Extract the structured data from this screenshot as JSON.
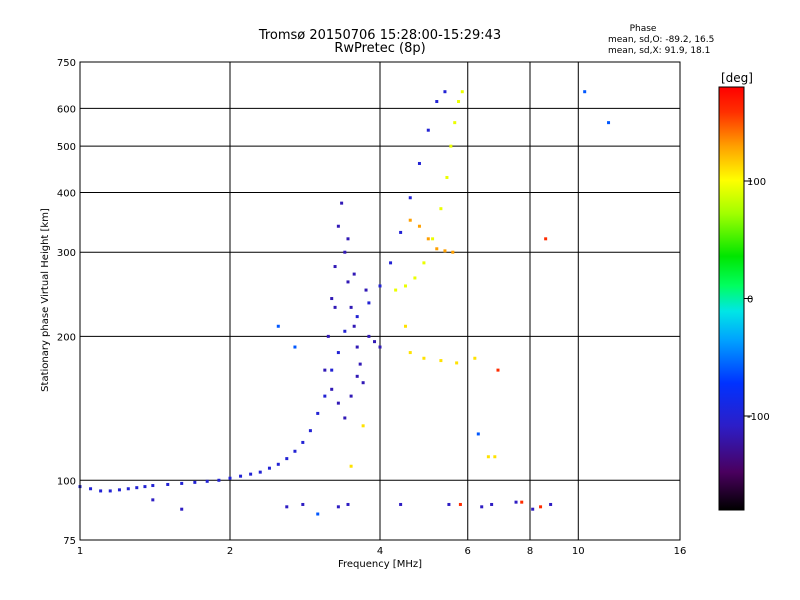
{
  "chart_data": {
    "type": "scatter",
    "title": "Tromsø 20150706 15:28:00-15:29:43",
    "subtitle": "RwPretec (8p)",
    "xlabel": "Frequency [MHz]",
    "ylabel": "Stationary phase Virtual Height [km]",
    "x_scale": "log2",
    "y_scale": "log",
    "xlim": [
      1,
      16
    ],
    "ylim": [
      75,
      750
    ],
    "x_ticks": [
      1,
      2,
      4,
      6,
      8,
      10,
      16
    ],
    "x_tick_labels": [
      "1",
      "2",
      "4",
      "6",
      "8",
      "10",
      "16"
    ],
    "y_ticks": [
      75,
      100,
      200,
      300,
      400,
      500,
      600,
      750
    ],
    "y_tick_labels": [
      "75",
      "100",
      "200",
      "300",
      "400",
      "500",
      "600",
      "750"
    ],
    "grid": true,
    "phase_info": {
      "header": "Phase",
      "line_o": "mean, sd,O: -89.2, 16.5",
      "line_x": "mean, sd,X:  91.9, 18.1"
    },
    "colorbar": {
      "label": "[deg]",
      "range": [
        -180,
        180
      ],
      "ticks": [
        100,
        0,
        -100
      ],
      "tick_labels": [
        "100",
        "0",
        "-100"
      ]
    },
    "series": [
      {
        "color_phase": -100,
        "points": [
          [
            1.0,
            97
          ],
          [
            1.05,
            96
          ],
          [
            1.1,
            95
          ],
          [
            1.15,
            95
          ],
          [
            1.2,
            95.5
          ],
          [
            1.25,
            96
          ],
          [
            1.3,
            96.5
          ],
          [
            1.35,
            97
          ],
          [
            1.4,
            97.5
          ],
          [
            1.5,
            98
          ],
          [
            1.6,
            98.5
          ],
          [
            1.7,
            99
          ],
          [
            1.8,
            99.5
          ],
          [
            1.9,
            100
          ],
          [
            2.0,
            101
          ],
          [
            2.1,
            102
          ],
          [
            2.2,
            103
          ],
          [
            2.3,
            104
          ],
          [
            2.4,
            106
          ],
          [
            2.5,
            108
          ],
          [
            2.6,
            111
          ],
          [
            2.7,
            115
          ],
          [
            2.8,
            120
          ],
          [
            2.9,
            127
          ],
          [
            3.0,
            138
          ],
          [
            3.1,
            150
          ],
          [
            3.2,
            170
          ],
          [
            3.3,
            185
          ],
          [
            3.4,
            205
          ],
          [
            3.6,
            220
          ],
          [
            3.8,
            235
          ],
          [
            4.0,
            255
          ],
          [
            4.2,
            285
          ],
          [
            4.4,
            330
          ],
          [
            4.6,
            390
          ],
          [
            4.8,
            460
          ],
          [
            5.0,
            540
          ],
          [
            5.2,
            620
          ],
          [
            5.4,
            650
          ]
        ]
      },
      {
        "color_phase": -115,
        "points": [
          [
            3.1,
            170
          ],
          [
            3.15,
            200
          ],
          [
            3.2,
            240
          ],
          [
            3.25,
            280
          ],
          [
            3.3,
            340
          ],
          [
            3.35,
            380
          ],
          [
            3.4,
            300
          ],
          [
            3.45,
            260
          ],
          [
            3.5,
            230
          ],
          [
            3.55,
            210
          ],
          [
            3.6,
            190
          ],
          [
            3.65,
            175
          ],
          [
            3.7,
            160
          ],
          [
            3.2,
            155
          ],
          [
            3.3,
            145
          ],
          [
            3.4,
            135
          ],
          [
            3.5,
            150
          ],
          [
            3.6,
            165
          ],
          [
            3.25,
            230
          ],
          [
            3.45,
            320
          ],
          [
            3.55,
            270
          ],
          [
            3.75,
            250
          ],
          [
            3.8,
            200
          ],
          [
            3.9,
            195
          ],
          [
            4.0,
            190
          ]
        ]
      },
      {
        "color_phase": 95,
        "points": [
          [
            4.3,
            250
          ],
          [
            4.5,
            255
          ],
          [
            4.7,
            265
          ],
          [
            4.9,
            285
          ],
          [
            5.1,
            320
          ],
          [
            5.3,
            370
          ],
          [
            5.45,
            430
          ],
          [
            5.55,
            500
          ],
          [
            5.65,
            560
          ],
          [
            5.75,
            620
          ],
          [
            5.85,
            650
          ]
        ]
      },
      {
        "color_phase": 130,
        "points": [
          [
            4.6,
            350
          ],
          [
            4.8,
            340
          ],
          [
            5.0,
            320
          ],
          [
            5.2,
            305
          ],
          [
            5.4,
            302
          ],
          [
            5.6,
            300
          ]
        ]
      },
      {
        "color_phase": 110,
        "points": [
          [
            4.6,
            185
          ],
          [
            4.9,
            180
          ],
          [
            5.3,
            178
          ],
          [
            5.7,
            176
          ],
          [
            6.2,
            180
          ],
          [
            6.6,
            112
          ],
          [
            6.8,
            112
          ],
          [
            3.7,
            130
          ],
          [
            3.5,
            107
          ],
          [
            4.5,
            210
          ]
        ]
      },
      {
        "color_phase": -110,
        "points": [
          [
            2.6,
            88
          ],
          [
            2.8,
            89
          ],
          [
            3.3,
            88
          ],
          [
            3.45,
            89
          ],
          [
            4.4,
            89
          ],
          [
            5.5,
            89
          ],
          [
            6.4,
            88
          ],
          [
            6.7,
            89
          ],
          [
            7.5,
            90
          ],
          [
            8.1,
            87
          ],
          [
            8.8,
            89
          ],
          [
            1.6,
            87
          ],
          [
            1.4,
            91
          ]
        ]
      },
      {
        "color_phase": -60,
        "points": [
          [
            2.5,
            210
          ],
          [
            2.7,
            190
          ],
          [
            3.0,
            85
          ],
          [
            6.3,
            125
          ],
          [
            10.3,
            650
          ],
          [
            11.5,
            560
          ]
        ]
      },
      {
        "color_phase": 160,
        "points": [
          [
            8.6,
            320
          ],
          [
            6.9,
            170
          ],
          [
            7.7,
            90
          ],
          [
            8.4,
            88
          ],
          [
            5.8,
            89
          ]
        ]
      }
    ]
  }
}
